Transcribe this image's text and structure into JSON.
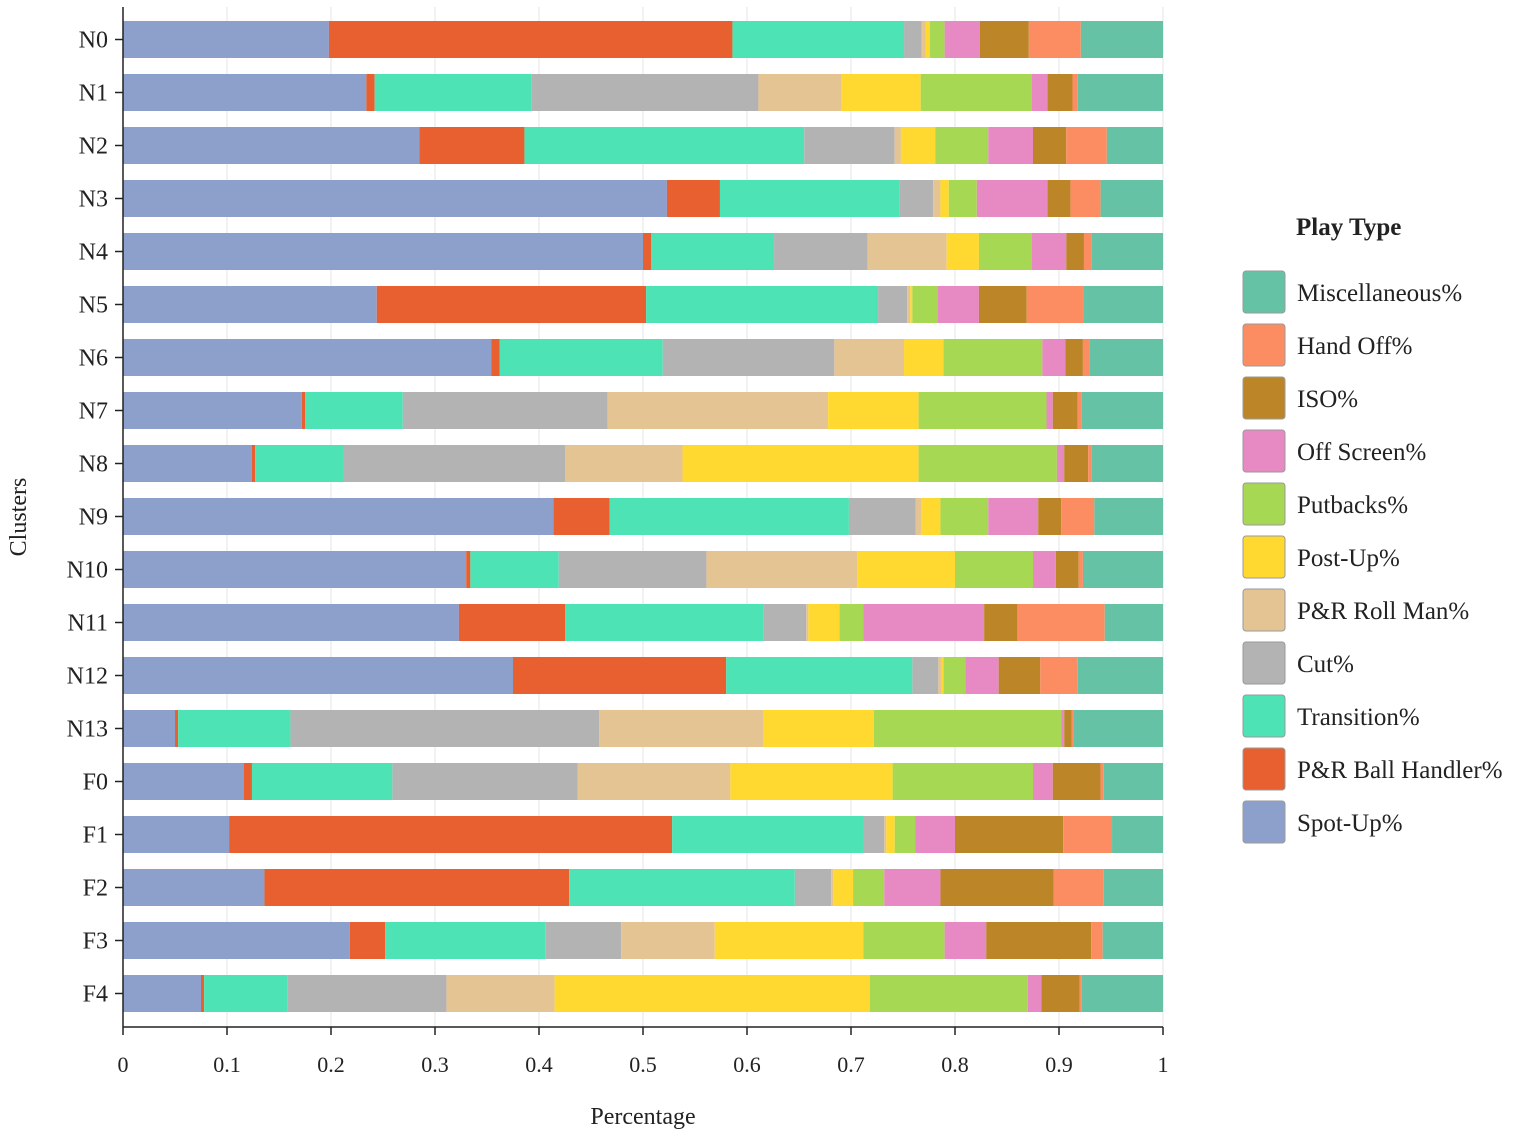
{
  "chart_data": {
    "type": "bar",
    "orientation": "horizontal",
    "stacked": true,
    "xlabel": "Percentage",
    "ylabel": "Clusters",
    "xlim": [
      0,
      1
    ],
    "xticks": [
      0,
      0.1,
      0.2,
      0.3,
      0.4,
      0.5,
      0.6,
      0.7,
      0.8,
      0.9,
      1
    ],
    "xtick_labels": [
      "0",
      "0.1",
      "0.2",
      "0.3",
      "0.4",
      "0.5",
      "0.6",
      "0.7",
      "0.8",
      "0.9",
      "1"
    ],
    "grid": true,
    "legend_title": "Play Type",
    "legend_position": "right",
    "categories": [
      "N0",
      "N1",
      "N2",
      "N3",
      "N4",
      "N5",
      "N6",
      "N7",
      "N8",
      "N9",
      "N10",
      "N11",
      "N12",
      "N13",
      "F0",
      "F1",
      "F2",
      "F3",
      "F4"
    ],
    "series": [
      {
        "name": "Spot-Up%",
        "color": "#8DA0CB",
        "values": [
          0.198,
          0.234,
          0.285,
          0.523,
          0.5,
          0.244,
          0.354,
          0.172,
          0.124,
          0.414,
          0.33,
          0.323,
          0.375,
          0.05,
          0.116,
          0.102,
          0.136,
          0.218,
          0.075
        ]
      },
      {
        "name": "P&R Ball Handler%",
        "color": "#E8602F",
        "values": [
          0.388,
          0.008,
          0.101,
          0.051,
          0.008,
          0.259,
          0.008,
          0.003,
          0.003,
          0.054,
          0.004,
          0.102,
          0.205,
          0.003,
          0.008,
          0.426,
          0.293,
          0.034,
          0.003
        ]
      },
      {
        "name": "Transition%",
        "color": "#4DE3B4",
        "values": [
          0.165,
          0.151,
          0.269,
          0.173,
          0.118,
          0.223,
          0.157,
          0.094,
          0.085,
          0.23,
          0.085,
          0.191,
          0.179,
          0.108,
          0.135,
          0.184,
          0.217,
          0.154,
          0.08
        ]
      },
      {
        "name": "Cut%",
        "color": "#B3B3B3",
        "values": [
          0.017,
          0.218,
          0.087,
          0.032,
          0.09,
          0.028,
          0.165,
          0.197,
          0.213,
          0.064,
          0.142,
          0.041,
          0.025,
          0.297,
          0.178,
          0.02,
          0.035,
          0.073,
          0.153
        ]
      },
      {
        "name": "P&R Roll Man%",
        "color": "#E5C494",
        "values": [
          0.004,
          0.08,
          0.006,
          0.007,
          0.076,
          0.003,
          0.067,
          0.212,
          0.113,
          0.006,
          0.145,
          0.002,
          0.003,
          0.158,
          0.147,
          0.002,
          0.002,
          0.09,
          0.104
        ]
      },
      {
        "name": "Post-Up%",
        "color": "#FFD92F",
        "values": [
          0.004,
          0.076,
          0.033,
          0.008,
          0.031,
          0.002,
          0.038,
          0.087,
          0.227,
          0.018,
          0.094,
          0.03,
          0.002,
          0.106,
          0.156,
          0.008,
          0.019,
          0.143,
          0.303
        ]
      },
      {
        "name": "Putbacks%",
        "color": "#A6D854",
        "values": [
          0.014,
          0.107,
          0.051,
          0.027,
          0.051,
          0.024,
          0.095,
          0.123,
          0.133,
          0.046,
          0.075,
          0.023,
          0.021,
          0.18,
          0.135,
          0.02,
          0.03,
          0.078,
          0.152
        ]
      },
      {
        "name": "Off Screen%",
        "color": "#E78AC3",
        "values": [
          0.034,
          0.015,
          0.043,
          0.068,
          0.033,
          0.04,
          0.022,
          0.006,
          0.007,
          0.048,
          0.022,
          0.116,
          0.032,
          0.003,
          0.019,
          0.038,
          0.054,
          0.04,
          0.013
        ]
      },
      {
        "name": "ISO%",
        "color": "#BC8628",
        "values": [
          0.047,
          0.024,
          0.032,
          0.022,
          0.017,
          0.046,
          0.017,
          0.024,
          0.023,
          0.022,
          0.022,
          0.032,
          0.04,
          0.007,
          0.046,
          0.104,
          0.109,
          0.101,
          0.037
        ]
      },
      {
        "name": "Hand Off%",
        "color": "#FC8D62",
        "values": [
          0.05,
          0.005,
          0.039,
          0.029,
          0.007,
          0.055,
          0.006,
          0.004,
          0.003,
          0.032,
          0.004,
          0.084,
          0.036,
          0.002,
          0.003,
          0.047,
          0.048,
          0.011,
          0.002
        ]
      },
      {
        "name": "Miscellaneous%",
        "color": "#66C2A5",
        "values": [
          0.079,
          0.082,
          0.054,
          0.06,
          0.069,
          0.076,
          0.071,
          0.078,
          0.069,
          0.066,
          0.077,
          0.056,
          0.082,
          0.086,
          0.057,
          0.049,
          0.057,
          0.058,
          0.078
        ]
      }
    ]
  }
}
